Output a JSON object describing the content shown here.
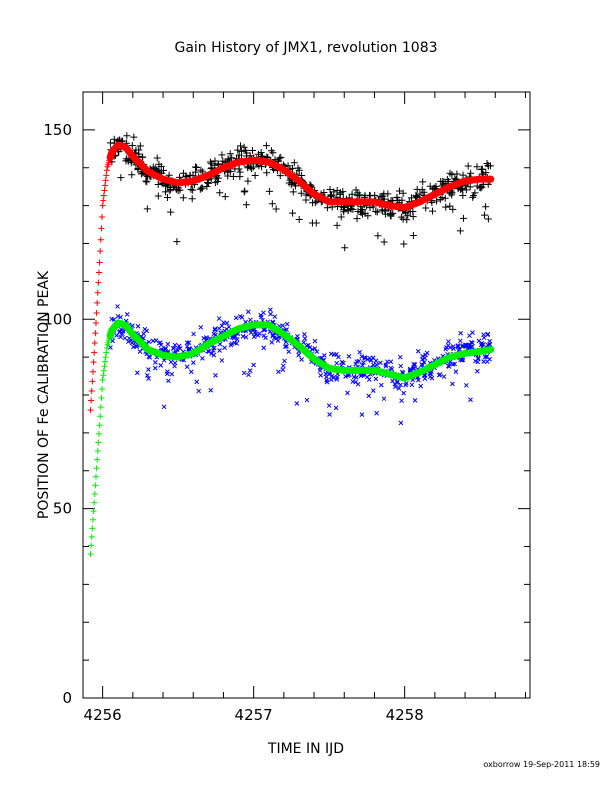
{
  "chart_data": {
    "type": "scatter",
    "title": "Gain History of JMX1, revolution 1083",
    "xlabel": "TIME IN IJD",
    "ylabel": "POSITION OF Fe CALIBRATION PEAK",
    "footer": "oxborrow 19-Sep-2011 18:59",
    "xlim": [
      4255.87,
      4258.83
    ],
    "ylim": [
      0,
      160
    ],
    "x_ticks": [
      4256,
      4257,
      4258
    ],
    "x_tick_labels": [
      "4256",
      "4257",
      "4258"
    ],
    "y_ticks": [
      0,
      50,
      100,
      150
    ],
    "y_tick_labels": [
      "0",
      "50",
      "100",
      "150"
    ],
    "x_minor_step": 0.2,
    "y_minor_step": 10,
    "grid": false,
    "legend": "none",
    "upper_data_range": [
      4256.05,
      4258.57
    ],
    "lower_data_range": [
      4256.05,
      4258.57
    ],
    "upper_curve": {
      "x": [
        4255.92,
        4255.95,
        4255.98,
        4256.0,
        4256.03,
        4256.06,
        4256.1,
        4256.15,
        4256.2,
        4256.3,
        4256.4,
        4256.5,
        4256.6,
        4256.7,
        4256.8,
        4256.9,
        4257.0,
        4257.1,
        4257.2,
        4257.3,
        4257.4,
        4257.5,
        4257.6,
        4257.7,
        4257.8,
        4257.9,
        4258.0,
        4258.1,
        4258.2,
        4258.3,
        4258.4,
        4258.5,
        4258.57
      ],
      "y": [
        76,
        95,
        115,
        130,
        140,
        144,
        146,
        145.5,
        143,
        139,
        137,
        136,
        136.5,
        138,
        140,
        141.5,
        142,
        141.5,
        139.5,
        136.5,
        133,
        131,
        131,
        131,
        131,
        130,
        129.5,
        131,
        133,
        135,
        136.5,
        137,
        137
      ]
    },
    "lower_curve": {
      "x": [
        4255.92,
        4255.95,
        4255.98,
        4256.0,
        4256.03,
        4256.06,
        4256.1,
        4256.15,
        4256.2,
        4256.3,
        4256.4,
        4256.5,
        4256.6,
        4256.7,
        4256.8,
        4256.9,
        4257.0,
        4257.1,
        4257.2,
        4257.3,
        4257.4,
        4257.5,
        4257.6,
        4257.7,
        4257.8,
        4257.9,
        4258.0,
        4258.1,
        4258.2,
        4258.3,
        4258.4,
        4258.5,
        4258.57
      ],
      "y": [
        38,
        55,
        72,
        84,
        93,
        97,
        99,
        98.5,
        96,
        92,
        90.5,
        90,
        91,
        93.5,
        95.5,
        97.5,
        98.5,
        98.5,
        96,
        93,
        89.5,
        87,
        86.5,
        86.5,
        86.5,
        85.5,
        84.5,
        86,
        88,
        90,
        91,
        91.5,
        92
      ]
    },
    "series": [
      {
        "role": "upper measurements",
        "marker": "plus",
        "color": "#000000"
      },
      {
        "role": "upper fit",
        "marker": "line",
        "color": "#ff0000"
      },
      {
        "role": "lower measurements",
        "marker": "cross",
        "color": "#0000ff"
      },
      {
        "role": "lower fit",
        "marker": "line",
        "color": "#00ee00"
      }
    ]
  }
}
